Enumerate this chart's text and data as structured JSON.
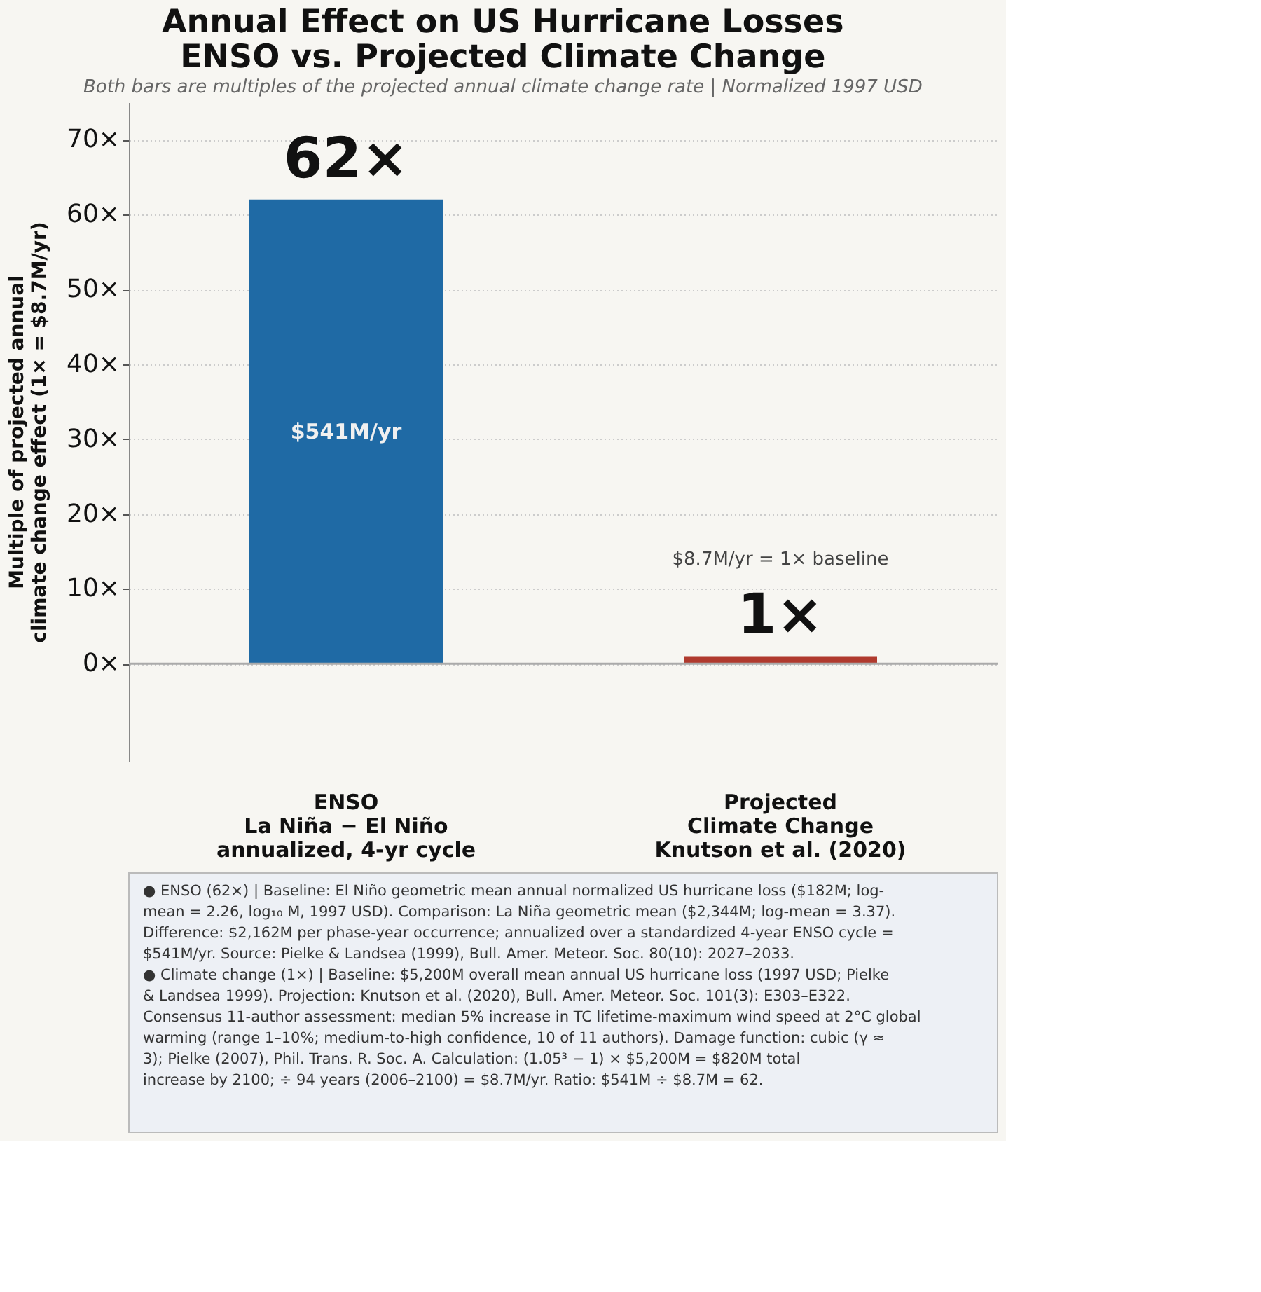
{
  "chart_data": {
    "type": "bar",
    "title": "Annual Effect on US Hurricane Losses\nENSO vs. Projected Climate Change",
    "subtitle": "Both bars are multiples of the projected annual climate change rate  |  Normalized 1997 USD",
    "ylabel": "Multiple of projected annual\nclimate change effect  (1× = $8.7M/yr)",
    "categories": [
      "ENSO\nLa Niña − El Niño\nannualized, 4-yr cycle",
      "Projected\nClimate Change\nKnutson et al. (2020)"
    ],
    "values": [
      62,
      1
    ],
    "colors": [
      "#1f6aa5",
      "#b03a2e"
    ],
    "value_labels": [
      "62×",
      "1×"
    ],
    "ylim": [
      -13,
      75
    ],
    "yticks": [
      {
        "value": 0,
        "label": "0×"
      },
      {
        "value": 10,
        "label": "10×"
      },
      {
        "value": 20,
        "label": "20×"
      },
      {
        "value": 30,
        "label": "30×"
      },
      {
        "value": 40,
        "label": "40×"
      },
      {
        "value": 50,
        "label": "50×"
      },
      {
        "value": 60,
        "label": "60×"
      },
      {
        "value": 70,
        "label": "70×"
      }
    ],
    "grid": "y",
    "annotations": [
      "$541M/yr",
      "$8.7M/yr = 1× baseline",
      "● ENSO (62×) | Baseline: El Niño geometric mean annual normalized US hurricane loss ($182M; log-mean = 2.26, log₁₀ M, 1997 USD). Comparison: La Niña geometric mean ($2,344M; log-mean = 3.37). Difference: $2,162M per phase-year occurrence; annualized over a standardized 4-year ENSO cycle = $541M/yr. Source: Pielke & Landsea (1999), Bull. Amer. Meteor. Soc. 80(10): 2027–2033.",
      "● Climate change (1×) | Baseline: $5,200M overall mean annual US hurricane loss (1997 USD; Pielke & Landsea 1999). Projection: Knutson et al. (2020), Bull. Amer. Meteor. Soc. 101(3): E303–E322. Consensus 11-author assessment: median 5% increase in TC lifetime-maximum wind speed at 2°C global warming (range 1–10%; medium-to-high confidence, 10 of 11 authors). Damage function: cubic (γ ≈ 3); Pielke (2007), Phil. Trans. R. Soc. A. Calculation: (1.05³ − 1) × $5,200M = $820M total increase by 2100; ÷ 94 years (2006–2100) = $8.7M/yr. Ratio: $541M ÷ $8.7M = 62."
    ]
  }
}
